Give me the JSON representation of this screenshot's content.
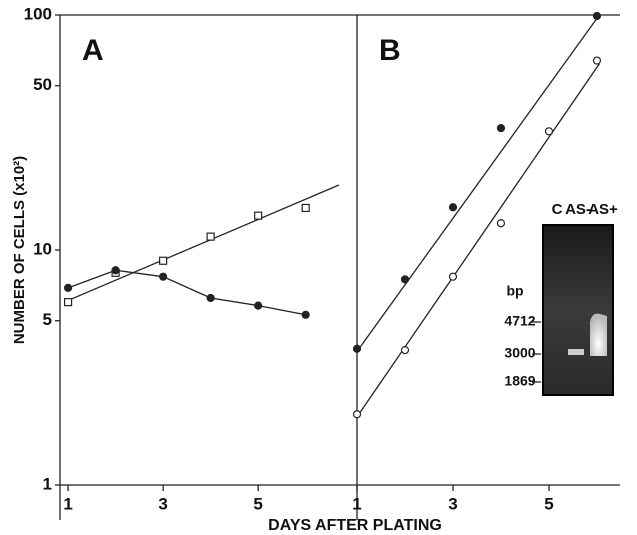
{
  "chart_data": [
    {
      "type": "line",
      "title": "A",
      "y_label": "NUMBER OF CELLS (x10²)",
      "x_label": "DAYS AFTER PLATING",
      "xlim": [
        0.83,
        7.08
      ],
      "xticks": [
        1,
        3,
        5
      ],
      "ylim": [
        1,
        100
      ],
      "yticks": [
        1,
        5,
        10,
        50,
        100
      ],
      "log_y": true,
      "series": [
        {
          "marker": "square-open",
          "color": "#222",
          "x": [
            1,
            2,
            3,
            4,
            5,
            6
          ],
          "values": [
            6.0,
            8.0,
            9.0,
            11.4,
            14,
            15.1
          ],
          "fit_x": [
            1,
            6.7
          ],
          "fit_values": [
            6.1,
            18.9
          ]
        },
        {
          "marker": "circle-filled",
          "color": "#222",
          "x": [
            1,
            2,
            3,
            4,
            5,
            6
          ],
          "values": [
            6.9,
            8.2,
            7.7,
            6.25,
            5.8,
            5.3
          ],
          "connect": true
        }
      ]
    },
    {
      "type": "line",
      "title": "B",
      "xlim": [
        1,
        6.48
      ],
      "xticks": [
        1,
        3,
        5
      ],
      "ylim": [
        1,
        100
      ],
      "log_y": true,
      "series": [
        {
          "marker": "circle-filled",
          "color": "#222",
          "x": [
            1,
            2,
            3,
            4,
            6
          ],
          "values": [
            3.8,
            7.5,
            15.2,
            33,
            99
          ],
          "fit_x": [
            1,
            6.05
          ],
          "fit_values": [
            3.7,
            100
          ]
        },
        {
          "marker": "circle-open",
          "color": "#222",
          "x": [
            1,
            2,
            3,
            4,
            5,
            6
          ],
          "values": [
            2.0,
            3.75,
            7.7,
            13,
            32,
            64
          ],
          "fit_x": [
            1,
            6.05
          ],
          "fit_values": [
            1.95,
            62
          ]
        }
      ]
    }
  ],
  "inset": {
    "lanes": [
      "C",
      "AS-",
      "AS+"
    ],
    "unit": "bp",
    "markers": [
      "4712",
      "3000",
      "1869"
    ]
  }
}
